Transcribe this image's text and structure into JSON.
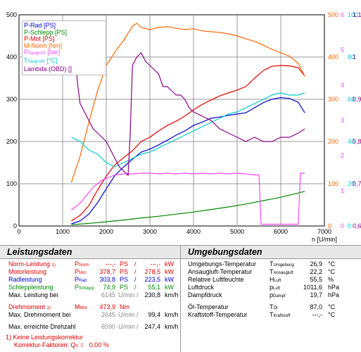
{
  "chart_data": {
    "type": "line",
    "x_label": "n [U/min]",
    "x_range": [
      0,
      7000
    ],
    "x_ticks": [
      "0",
      "1000",
      "2000",
      "3000",
      "4000",
      "5000",
      "6000",
      "7000"
    ],
    "axes": {
      "left": {
        "range": [
          0,
          500
        ],
        "ticks": [
          "0",
          "100",
          "200",
          "300",
          "400",
          "500"
        ],
        "color": "#000000"
      },
      "orange": {
        "range": [
          0,
          500
        ],
        "ticks": [
          "0",
          "100",
          "200",
          "300",
          "400",
          "500"
        ],
        "color": "#ff6600"
      },
      "pink": {
        "range": [
          0,
          6
        ],
        "ticks": [
          "0",
          "1",
          "2",
          "3",
          "4",
          "5",
          "6"
        ],
        "color": "#ff44ff"
      },
      "cyan": {
        "range": [
          0,
          100
        ],
        "ticks": [
          "0",
          "20",
          "40",
          "60",
          "80",
          "100"
        ],
        "color": "#00cccc"
      },
      "purple": {
        "range": [
          0.6,
          1.1
        ],
        "ticks": [
          "0,6",
          "0,7",
          "0,8",
          "0,9",
          "1",
          "1,1"
        ],
        "color": "#880088"
      }
    },
    "grid": true,
    "series": [
      {
        "name": "P-Rad [PS]",
        "color": "#0000cc",
        "axis": "left",
        "x": [
          1200,
          1400,
          1600,
          1800,
          2000,
          2200,
          2400,
          2600,
          2800,
          3000,
          3200,
          3400,
          3600,
          3800,
          4000,
          4200,
          4400,
          4600,
          4800,
          5000,
          5200,
          5400,
          5600,
          5800,
          6000,
          6200,
          6400,
          6550
        ],
        "y": [
          5,
          12,
          28,
          55,
          88,
          120,
          140,
          158,
          175,
          182,
          192,
          203,
          215,
          225,
          238,
          246,
          255,
          258,
          262,
          265,
          268,
          280,
          292,
          300,
          304,
          302,
          293,
          268
        ]
      },
      {
        "name": "P-Schlepp [PS]",
        "color": "#008800",
        "axis": "left",
        "x": [
          1200,
          1600,
          2000,
          2400,
          2800,
          3200,
          3600,
          4000,
          4400,
          4800,
          5200,
          5600,
          6000,
          6400,
          6550
        ],
        "y": [
          3,
          6,
          10,
          14,
          19,
          23,
          28,
          33,
          39,
          45,
          52,
          60,
          68,
          78,
          82
        ]
      },
      {
        "name": "P-Mot [PS]",
        "color": "#e00000",
        "axis": "left",
        "x": [
          1200,
          1400,
          1600,
          1800,
          2000,
          2200,
          2400,
          2600,
          2800,
          3000,
          3200,
          3400,
          3600,
          3800,
          4000,
          4200,
          4400,
          4600,
          4800,
          5000,
          5200,
          5400,
          5600,
          5800,
          6000,
          6200,
          6400,
          6550
        ],
        "y": [
          12,
          25,
          48,
          85,
          118,
          145,
          162,
          178,
          200,
          210,
          225,
          238,
          248,
          260,
          275,
          288,
          298,
          308,
          315,
          322,
          330,
          350,
          368,
          378,
          380,
          379,
          375,
          355
        ]
      },
      {
        "name": "M-Norm [Nm]",
        "color": "#ff6600",
        "axis": "orange",
        "x": [
          1200,
          1400,
          1600,
          1800,
          2000,
          2200,
          2400,
          2600,
          2700,
          2800,
          3000,
          3200,
          3400,
          3600,
          3800,
          4000,
          4200,
          4400,
          4600,
          4800,
          5000,
          5200,
          5400,
          5600,
          5800,
          6000,
          6200,
          6400,
          6550
        ],
        "y": [
          103,
          165,
          245,
          320,
          380,
          412,
          440,
          473,
          480,
          470,
          465,
          470,
          472,
          468,
          465,
          467,
          462,
          460,
          458,
          455,
          450,
          443,
          437,
          428,
          418,
          410,
          402,
          385,
          355
        ]
      },
      {
        "name": "P_Saugrohr [bar]",
        "color": "#ff44ff",
        "axis": "pink",
        "x": [
          1200,
          1400,
          1600,
          1700,
          1900,
          2100,
          2200,
          2400,
          2600,
          2800,
          3000,
          3200,
          3400,
          3600,
          3800,
          4000,
          4200,
          4400,
          4600,
          4800,
          5000,
          5200,
          5400,
          5500,
          5550,
          5700,
          5850,
          5900,
          6000,
          6200,
          6400,
          6450,
          6550
        ],
        "y": [
          0.45,
          0.65,
          0.95,
          1.1,
          1.3,
          1.4,
          1.45,
          1.48,
          1.48,
          1.5,
          1.5,
          1.48,
          1.5,
          1.48,
          1.5,
          1.48,
          1.5,
          1.48,
          1.5,
          1.48,
          1.5,
          1.48,
          1.45,
          1.45,
          0.05,
          0.05,
          0.05,
          0.05,
          0.05,
          0.05,
          0.05,
          1.5,
          1.5
        ]
      },
      {
        "name": "T_Saugrohr [°C]",
        "color": "#00cccc",
        "axis": "cyan",
        "x": [
          1200,
          1400,
          1600,
          1800,
          2000,
          2200,
          2400,
          2600,
          2800,
          3000,
          3200,
          3400,
          3600,
          3800,
          4000,
          4200,
          4400,
          4600,
          4800,
          5000,
          5200,
          5400,
          5600,
          5800,
          6000,
          6200,
          6400,
          6550
        ],
        "y": [
          42,
          40,
          36,
          34,
          30,
          28,
          30,
          32,
          34,
          35,
          37,
          39,
          41,
          43,
          45,
          47,
          49,
          51,
          53,
          54,
          56,
          58,
          60,
          62,
          63,
          62,
          62,
          63
        ]
      },
      {
        "name": "Lambda (OBD) []",
        "color": "#880088",
        "axis": "purple",
        "x": [
          1200,
          1300,
          1350,
          1400,
          1500,
          1600,
          1700,
          1800,
          1900,
          2000,
          2100,
          2200,
          2300,
          2400,
          2500,
          2550,
          2600,
          2700,
          2800,
          2900,
          3000,
          3100,
          3200,
          3300,
          3400,
          3500,
          3600,
          3700,
          3800,
          3900,
          4000,
          4200,
          4400,
          4600,
          4800,
          5000,
          5200,
          5400,
          5600,
          5800,
          6000,
          6200,
          6400,
          6550
        ],
        "y": [
          0.98,
          0.98,
          0.93,
          0.89,
          0.87,
          0.85,
          0.83,
          0.82,
          0.81,
          0.8,
          0.78,
          0.76,
          0.74,
          0.73,
          0.72,
          0.82,
          0.98,
          1.0,
          1.01,
          0.99,
          0.98,
          0.97,
          0.96,
          0.93,
          0.93,
          0.92,
          0.91,
          0.91,
          0.9,
          0.88,
          0.87,
          0.86,
          0.85,
          0.83,
          0.82,
          0.81,
          0.8,
          0.81,
          0.8,
          0.8,
          0.81,
          0.81,
          0.82,
          0.83
        ]
      }
    ]
  },
  "legend": [
    {
      "label": "P-Rad [PS]",
      "color": "#0000cc"
    },
    {
      "label": "P-Schlepp [PS]",
      "color": "#008800"
    },
    {
      "label": "P-Mot [PS]",
      "color": "#e00000"
    },
    {
      "label": "M-Norm [Nm]",
      "color": "#ff6600"
    },
    {
      "label": "P",
      "sub": "Saugrohr",
      "unit": "[bar]",
      "color": "#ff44ff"
    },
    {
      "label": "T",
      "sub": "Saugrohr",
      "unit": "[°C]",
      "color": "#00cccc"
    },
    {
      "label": "Lambda (OBD) []",
      "color": "#880088"
    }
  ],
  "left_panel": {
    "title": "Leistungsdaten",
    "norm_label": "Norm-Leistung",
    "norm_footnote": "1)",
    "norm_sym": "P",
    "norm_sub": "Norm",
    "norm_ps": "---,-",
    "ps_unit": "PS",
    "norm_kw": "---,-",
    "kw_unit": "kW",
    "motor_label": "Motorleistung",
    "motor_sym": "P",
    "motor_sub": "Mot",
    "motor_ps": "378,7",
    "motor_kw": "278,5",
    "rad_label": "Radleistung",
    "rad_sym": "P",
    "rad_sub": "Rad",
    "rad_ps": "303,8",
    "rad_kw": "223,5",
    "schlepp_label": "Schleppleistung",
    "schlepp_sym": "P",
    "schlepp_sub": "Schlepp",
    "schlepp_ps": "74,9",
    "schlepp_kw": "55,1",
    "max_power_label": "Max. Leistung bei",
    "max_power_rpm": "6145",
    "rpm_unit": "U/min",
    "max_power_speed": "230,8",
    "speed_unit": "km/h",
    "torque_label": "Drehmoment",
    "torque_footnote": "1)",
    "torque_sym": "M",
    "torque_sub": "Mot",
    "torque_value": "473,9",
    "torque_unit": "Nm",
    "max_torque_label": "Max. Drehmoment bei",
    "max_torque_rpm": "2645",
    "max_torque_speed": "99,4",
    "max_speed_label": "Max. erreichte Drehzahl",
    "max_speed_rpm": "6590",
    "max_speed_speed": "247,4",
    "footnote_1": "1) Keine Leistungskorrektur",
    "footnote_2": "Korrektur-Faktoren: Q",
    "footnote_2_sub": "V",
    "footnote_2_val": " =   0,00 %"
  },
  "right_panel": {
    "title": "Umgebungsdaten",
    "rows": [
      {
        "label": "Umgebungs-Temperatur",
        "sym": "T",
        "sub": "Umgebung",
        "value": "26,9",
        "unit": "°C"
      },
      {
        "label": "Ansaugluft-Temperatur",
        "sym": "T",
        "sub": "Ansaugluft",
        "value": "22,2",
        "unit": "°C"
      },
      {
        "label": "Relative Luftfeuchte",
        "sym": "H",
        "sub": "Luft",
        "value": "55,5",
        "unit": "%"
      },
      {
        "label": "Luftdruck",
        "sym": "p",
        "sub": "Luft",
        "value": "1011,6",
        "unit": "hPa"
      },
      {
        "label": "Dampfdruck",
        "sym": "p",
        "sub": "Dampf",
        "value": "19,7",
        "unit": "hPa"
      },
      {
        "label": "Öl-Temperatur",
        "sym": "T",
        "sub": "Öl",
        "value": "87,0",
        "unit": "°C"
      },
      {
        "label": "Kraftstoff-Temperatur",
        "sym": "T",
        "sub": "Kraftstoff",
        "value": "---,-",
        "unit": "°C"
      }
    ]
  }
}
